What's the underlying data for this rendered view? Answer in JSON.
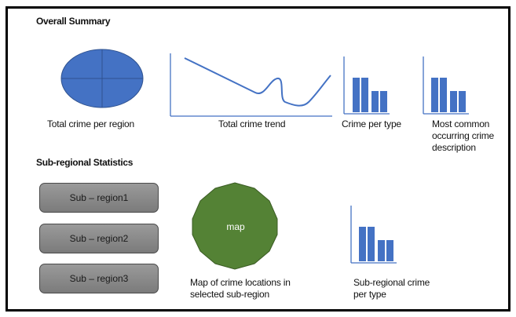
{
  "overall": {
    "heading": "Overall Summary",
    "pie_caption": "Total crime per region",
    "trend_caption": "Total crime trend",
    "type_caption": "Crime per type",
    "common_caption": "Most common occurring crime description"
  },
  "subregional": {
    "heading": "Sub-regional Statistics",
    "buttons": [
      {
        "label": "Sub – region1"
      },
      {
        "label": "Sub – region2"
      },
      {
        "label": "Sub – region3"
      }
    ],
    "map_label": "map",
    "map_caption": "Map of crime locations in selected sub-region",
    "type_caption": "Sub-regional crime per type"
  },
  "colors": {
    "chart_blue": "#4472C4",
    "map_green": "#548235",
    "button_gray": "#8c8c8c"
  }
}
